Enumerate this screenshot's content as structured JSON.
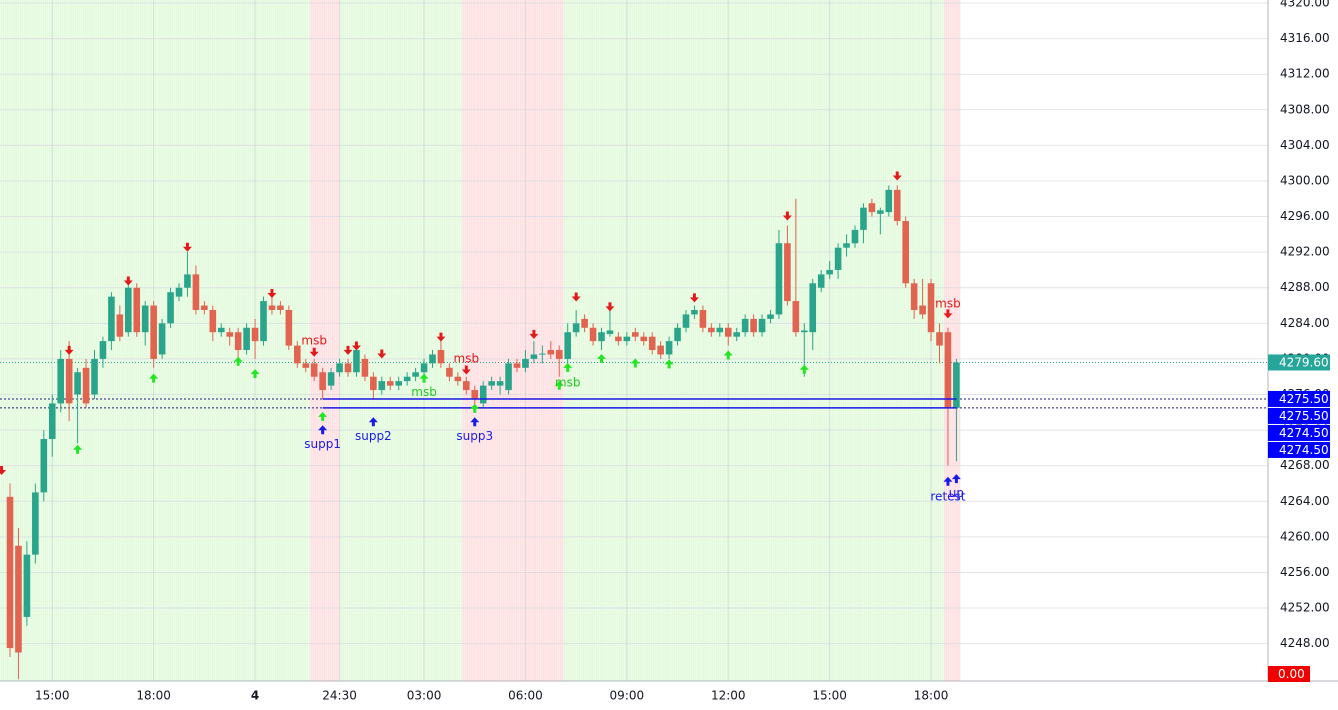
{
  "chart_data": {
    "type": "candlestick",
    "up_color": "#2aa58b",
    "down_color": "#e0644f",
    "ylim": [
      4243.8,
      4320.34
    ],
    "yticks": [
      {
        "value": 4248,
        "label": "4248.00"
      },
      {
        "value": 4252,
        "label": "4252.00"
      },
      {
        "value": 4256,
        "label": "4256.00"
      },
      {
        "value": 4260,
        "label": "4260.00"
      },
      {
        "value": 4264,
        "label": "4264.00"
      },
      {
        "value": 4268,
        "label": "4268.00"
      },
      {
        "value": 4272,
        "label": "4272.00"
      },
      {
        "value": 4276,
        "label": "4276.00"
      },
      {
        "value": 4280,
        "label": "4280.00"
      },
      {
        "value": 4284,
        "label": "4284.00"
      },
      {
        "value": 4288,
        "label": "4288.00"
      },
      {
        "value": 4292,
        "label": "4292.00"
      },
      {
        "value": 4296,
        "label": "4296.00"
      },
      {
        "value": 4300,
        "label": "4300.00"
      },
      {
        "value": 4304,
        "label": "4304.00"
      },
      {
        "value": 4308,
        "label": "4308.00"
      },
      {
        "value": 4312,
        "label": "4312.00"
      },
      {
        "value": 4316,
        "label": "4316.00"
      },
      {
        "value": 4320,
        "label": "4320.00"
      }
    ],
    "xticks": [
      {
        "value": 5,
        "label": "15:00"
      },
      {
        "value": 17,
        "label": "18:00"
      },
      {
        "value": 29,
        "label": "4",
        "bold": true
      },
      {
        "value": 39,
        "label": "24:30"
      },
      {
        "value": 49,
        "label": "03:00"
      },
      {
        "value": 61,
        "label": "06:00"
      },
      {
        "value": 73,
        "label": "09:00"
      },
      {
        "value": 85,
        "label": "12:00"
      },
      {
        "value": 97,
        "label": "15:00"
      },
      {
        "value": 109,
        "label": "18:00"
      }
    ],
    "grid": true,
    "open": [
      4264.5,
      4259,
      4251,
      4258,
      4265,
      4271,
      4275,
      4280,
      4276,
      4279,
      4276,
      4280,
      4282,
      4285,
      4283,
      4288,
      4283,
      4286,
      4280.5,
      4284,
      4287,
      4288,
      4289.5,
      4286,
      4285.5,
      4283,
      4283,
      4283,
      4281,
      4283.5,
      4282,
      4286,
      4286,
      4285.5,
      4281.5,
      4279.5,
      4279.5,
      4278.5,
      4277,
      4278.5,
      4279.5,
      4278.5,
      4280,
      4278,
      4276.5,
      4277.5,
      4277,
      4277.5,
      4278,
      4278.5,
      4279.5,
      4281,
      4279,
      4278,
      4277.5,
      4276.5,
      4275,
      4277,
      4277,
      4276.5,
      4279.5,
      4279,
      4280,
      4280.5,
      4281,
      4281,
      4280,
      4283,
      4284.5,
      4283.5,
      4282,
      4282.8,
      4282.5,
      4282,
      4283,
      4282.5,
      4282.5,
      4281.5,
      4280.5,
      4282,
      4283.5,
      4285,
      4285.5,
      4283.5,
      4283,
      4283.5,
      4282.5,
      4283,
      4284.5,
      4283,
      4284.5,
      4285,
      4293,
      4286.5,
      4283,
      4283,
      4288,
      4289.5,
      4290,
      4292.5,
      4293,
      4294.5,
      4297.5,
      4296.3,
      4296.5,
      4299,
      4295.5,
      4288.5,
      4286,
      4288.5,
      4283,
      4283,
      4274.5
    ],
    "high": [
      4266,
      4261,
      4259.5,
      4266,
      4272,
      4276,
      4281,
      4282,
      4279,
      4280,
      4281,
      4282.5,
      4287.5,
      4286,
      4289,
      4288.5,
      4286.5,
      4286.5,
      4284.5,
      4288,
      4288.5,
      4292,
      4290.5,
      4286.5,
      4286,
      4284,
      4283.5,
      4283.5,
      4284,
      4284.5,
      4287,
      4287,
      4286.5,
      4286,
      4282,
      4280,
      4280,
      4279,
      4279,
      4280,
      4280,
      4281.5,
      4280.5,
      4278.5,
      4278,
      4278,
      4278,
      4278.5,
      4279,
      4280,
      4281,
      4282,
      4279.5,
      4278.5,
      4278,
      4277,
      4277.5,
      4278,
      4278,
      4280,
      4280,
      4281,
      4282,
      4281.5,
      4282,
      4281.5,
      4284,
      4285.5,
      4285,
      4284,
      4283.5,
      4285.5,
      4283,
      4283,
      4283.5,
      4283,
      4283,
      4282,
      4282.5,
      4284,
      4285.5,
      4286,
      4286,
      4284,
      4284,
      4284,
      4283.5,
      4285,
      4285,
      4285,
      4285.5,
      4294.5,
      4295,
      4298,
      4284,
      4289,
      4290,
      4291,
      4293,
      4294,
      4295,
      4297.5,
      4298,
      4297,
      4299.5,
      4299.5,
      4296,
      4289,
      4289,
      4289,
      4284,
      4283.5,
      4280
    ],
    "low": [
      4246.5,
      4244,
      4250,
      4257,
      4264,
      4269,
      4274,
      4273,
      4270.5,
      4274.5,
      4275.5,
      4279,
      4281,
      4282,
      4282.5,
      4282.5,
      4281.5,
      4279,
      4280,
      4283.5,
      4286.5,
      4287,
      4285,
      4285,
      4282,
      4282.5,
      4281.5,
      4280,
      4280.5,
      4280,
      4281.5,
      4285,
      4285,
      4281,
      4279,
      4278.5,
      4277.5,
      4275.5,
      4276.5,
      4278,
      4278,
      4278,
      4277.5,
      4275.5,
      4276,
      4276.5,
      4276.5,
      4277,
      4277.5,
      4278,
      4279,
      4279,
      4277.5,
      4277,
      4276,
      4274.5,
      4274.5,
      4276.5,
      4276,
      4276,
      4278.5,
      4278.5,
      4279.5,
      4279.5,
      4280,
      4278,
      4279.5,
      4282.5,
      4283,
      4281.5,
      4281,
      4282.5,
      4281.5,
      4281.5,
      4282,
      4281.5,
      4280.5,
      4280,
      4280,
      4281.5,
      4283,
      4284.5,
      4283,
      4282.5,
      4282.5,
      4281.5,
      4282,
      4282.5,
      4282.5,
      4282.5,
      4284,
      4284.5,
      4286,
      4282.5,
      4278,
      4281,
      4287.5,
      4289,
      4289,
      4291.5,
      4292.5,
      4293,
      4296,
      4294,
      4296,
      4295,
      4288,
      4284.5,
      4284.5,
      4282,
      4279.5,
      4268,
      4268.5
    ],
    "close": [
      4247.5,
      4247,
      4258,
      4265,
      4271,
      4275,
      4280,
      4275,
      4278.5,
      4275,
      4280,
      4282,
      4287,
      4282.5,
      4288,
      4283,
      4286,
      4280,
      4284,
      4287.5,
      4288,
      4289.5,
      4285.5,
      4285.5,
      4283,
      4283.5,
      4282.5,
      4281,
      4283.5,
      4282,
      4286.5,
      4285.5,
      4285.5,
      4281.5,
      4279.5,
      4279,
      4278,
      4276.5,
      4278.5,
      4279.5,
      4278.5,
      4281,
      4278,
      4276.5,
      4277.5,
      4277,
      4277.5,
      4278,
      4278.5,
      4279.5,
      4280.5,
      4279.5,
      4278,
      4277.5,
      4276.5,
      4275.5,
      4277,
      4277.5,
      4277.5,
      4279.5,
      4279,
      4280,
      4280.5,
      4280.6,
      4280.5,
      4280,
      4283,
      4284,
      4283.5,
      4282,
      4283,
      4283.2,
      4282,
      4282.5,
      4282.5,
      4282,
      4281,
      4280.5,
      4282,
      4283.5,
      4285,
      4285.5,
      4283.5,
      4283,
      4283.5,
      4282.5,
      4283,
      4284.5,
      4283,
      4284.5,
      4285,
      4293,
      4286.5,
      4283,
      4283.2,
      4288.5,
      4289.5,
      4290,
      4292.5,
      4293,
      4294.5,
      4297,
      4296.5,
      4296.7,
      4299,
      4295.5,
      4288.5,
      4285.5,
      4285,
      4283,
      4281.5,
      4274.5,
      4279.6
    ],
    "zones": [
      {
        "start": -1.5,
        "end": 35.5,
        "color": "#e3fadd"
      },
      {
        "start": 35.5,
        "end": 39,
        "color": "#ffe0e2"
      },
      {
        "start": 39,
        "end": 53.5,
        "color": "#e3fadd"
      },
      {
        "start": 53.5,
        "end": 65.5,
        "color": "#ffe0e2"
      },
      {
        "start": 65.5,
        "end": 110.5,
        "color": "#e3fadd"
      },
      {
        "start": 110.5,
        "end": 112.5,
        "color": "#ffe0e2"
      }
    ],
    "signals": [
      {
        "index": -1,
        "price": 4267.4,
        "direction": "down",
        "color": "#e31a1a"
      },
      {
        "index": 7,
        "price": 4280.9,
        "direction": "down",
        "color": "#e31a1a"
      },
      {
        "index": 14,
        "price": 4288.7,
        "direction": "down",
        "color": "#e31a1a"
      },
      {
        "index": 21,
        "price": 4292.5,
        "direction": "down",
        "color": "#e31a1a"
      },
      {
        "index": 31,
        "price": 4287.3,
        "direction": "down",
        "color": "#e31a1a"
      },
      {
        "index": 36,
        "price": 4280.7,
        "direction": "down",
        "color": "#e31a1a"
      },
      {
        "index": 40,
        "price": 4280.9,
        "direction": "down",
        "color": "#e31a1a"
      },
      {
        "index": 41,
        "price": 4281.4,
        "direction": "down",
        "color": "#e31a1a"
      },
      {
        "index": 44,
        "price": 4280.5,
        "direction": "down",
        "color": "#e31a1a"
      },
      {
        "index": 51,
        "price": 4282.4,
        "direction": "down",
        "color": "#e31a1a"
      },
      {
        "index": 54,
        "price": 4278.7,
        "direction": "down",
        "color": "#e31a1a"
      },
      {
        "index": 62,
        "price": 4282.7,
        "direction": "down",
        "color": "#e31a1a"
      },
      {
        "index": 67,
        "price": 4286.9,
        "direction": "down",
        "color": "#e31a1a"
      },
      {
        "index": 71,
        "price": 4285.8,
        "direction": "down",
        "color": "#e31a1a"
      },
      {
        "index": 81,
        "price": 4286.8,
        "direction": "down",
        "color": "#e31a1a"
      },
      {
        "index": 92,
        "price": 4296.0,
        "direction": "down",
        "color": "#e31a1a"
      },
      {
        "index": 105,
        "price": 4300.5,
        "direction": "down",
        "color": "#e31a1a"
      },
      {
        "index": 111,
        "price": 4285.0,
        "direction": "down",
        "color": "#e31a1a"
      },
      {
        "index": 8,
        "price": 4269.9,
        "direction": "up",
        "color": "#22e622"
      },
      {
        "index": 17,
        "price": 4277.9,
        "direction": "up",
        "color": "#22e622"
      },
      {
        "index": 27,
        "price": 4279.8,
        "direction": "up",
        "color": "#22e622"
      },
      {
        "index": 29,
        "price": 4278.4,
        "direction": "up",
        "color": "#22e622"
      },
      {
        "index": 37,
        "price": 4273.6,
        "direction": "up",
        "color": "#22e622"
      },
      {
        "index": 49,
        "price": 4277.9,
        "direction": "up",
        "color": "#22e622"
      },
      {
        "index": 55,
        "price": 4274.5,
        "direction": "up",
        "color": "#22e622"
      },
      {
        "index": 65,
        "price": 4277.1,
        "direction": "up",
        "color": "#22e622"
      },
      {
        "index": 66,
        "price": 4279.1,
        "direction": "up",
        "color": "#22e622"
      },
      {
        "index": 70,
        "price": 4280.1,
        "direction": "up",
        "color": "#22e622"
      },
      {
        "index": 74,
        "price": 4279.6,
        "direction": "up",
        "color": "#22e622"
      },
      {
        "index": 78,
        "price": 4279.5,
        "direction": "up",
        "color": "#22e622"
      },
      {
        "index": 85,
        "price": 4280.5,
        "direction": "up",
        "color": "#22e622"
      },
      {
        "index": 94,
        "price": 4278.9,
        "direction": "up",
        "color": "#22e622"
      },
      {
        "index": 37,
        "price": 4272.1,
        "direction": "up",
        "color": "#1a1ae6"
      },
      {
        "index": 43,
        "price": 4273.0,
        "direction": "up",
        "color": "#1a1ae6"
      },
      {
        "index": 55,
        "price": 4273.0,
        "direction": "up",
        "color": "#1a1ae6"
      },
      {
        "index": 111,
        "price": 4266.3,
        "direction": "up",
        "color": "#1a1ae6"
      },
      {
        "index": 112,
        "price": 4266.6,
        "direction": "up",
        "color": "#1a1ae6"
      }
    ],
    "annotations": [
      {
        "text": "msb",
        "index": 36,
        "price": 4282.0,
        "color": "#e31a1a"
      },
      {
        "text": "msb",
        "index": 54,
        "price": 4280.0,
        "color": "#e31a1a"
      },
      {
        "text": "msb",
        "index": 49,
        "price": 4276.2,
        "color": "#22c922"
      },
      {
        "text": "msb",
        "index": 66,
        "price": 4277.3,
        "color": "#22c922"
      },
      {
        "text": "msb",
        "index": 111,
        "price": 4286.2,
        "color": "#e31a1a"
      },
      {
        "text": "supp1",
        "index": 37,
        "price": 4270.4,
        "color": "#1a1ae6"
      },
      {
        "text": "supp2",
        "index": 43,
        "price": 4271.3,
        "color": "#1a1ae6"
      },
      {
        "text": "supp3",
        "index": 55,
        "price": 4271.3,
        "color": "#1a1ae6"
      },
      {
        "text": "retest",
        "index": 111,
        "price": 4264.5,
        "color": "#1a1ae6"
      },
      {
        "text": "up",
        "index": 112,
        "price": 4264.9,
        "color": "#1a1ae6"
      }
    ],
    "levels": [
      {
        "value": 4275.5,
        "start": 37,
        "end": 112,
        "color": "#1a1ae6"
      },
      {
        "value": 4274.5,
        "start": 37,
        "end": 112,
        "color": "#1a1ae6"
      }
    ],
    "price_labels": [
      {
        "value": 4279.6,
        "label": "4279.60",
        "color": "#26a69a"
      },
      {
        "value": 4275.5,
        "label": "4275.50",
        "color": "#0000ff"
      },
      {
        "value": 4275.5,
        "label": "4275.50",
        "color": "#0000ff"
      },
      {
        "value": 4274.5,
        "label": "4274.50",
        "color": "#0000ff"
      },
      {
        "value": 4274.5,
        "label": "4274.50",
        "color": "#0000ff"
      }
    ],
    "indicator_label": {
      "value": 0,
      "label": "0.00",
      "color": "#f20000"
    }
  }
}
